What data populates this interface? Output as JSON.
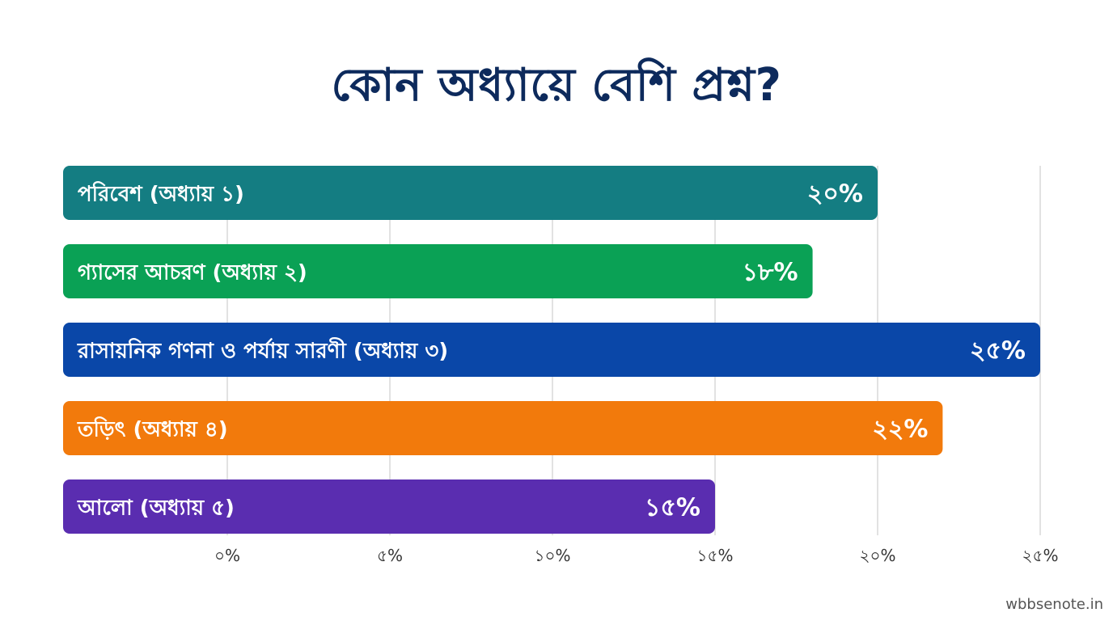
{
  "page": {
    "title": "কোন অধ্যায়ে বেশি প্রশ্ন?",
    "watermark": "wbbsenote.in"
  },
  "chart_data": {
    "type": "bar",
    "orientation": "horizontal",
    "title": "কোন অধ্যায়ে বেশি প্রশ্ন?",
    "categories": [
      "পরিবেশ (অধ্যায় ১)",
      "গ্যাসের আচরণ (অধ্যায় ২)",
      "রাসায়নিক গণনা ও পর্যায় সারণী (অধ্যায় ৩)",
      "তড়িৎ (অধ্যায় ৪)",
      "আলো (অধ্যায় ৫)"
    ],
    "values": [
      20,
      18,
      25,
      22,
      15
    ],
    "value_labels": [
      "২০%",
      "১৮%",
      "২৫%",
      "২২%",
      "১৫%"
    ],
    "colors": [
      "#147d82",
      "#0aa155",
      "#0a47a8",
      "#f27a0c",
      "#5a2db0"
    ],
    "xlim": [
      0,
      25
    ],
    "xticks": [
      0,
      5,
      10,
      15,
      20,
      25
    ],
    "xtick_labels": [
      "০%",
      "৫%",
      "১০%",
      "১৫%",
      "২০%",
      "২৫%"
    ],
    "grid": true,
    "xlabel": "",
    "ylabel": ""
  }
}
